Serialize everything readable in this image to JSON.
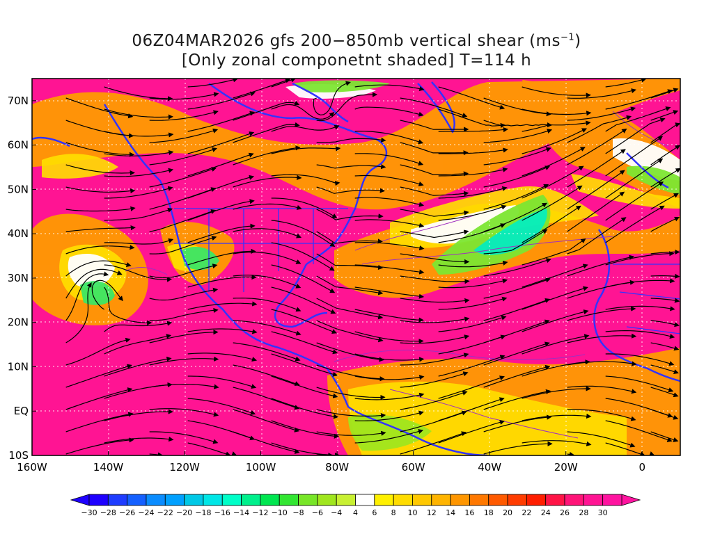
{
  "title": {
    "line1": "06Z04MAR2026 gfs 200−850mb vertical shear (ms",
    "line1_sup": "−1",
    "line1_end": ")",
    "line2": "[Only zonal componetnt shaded] T=114 h"
  },
  "map": {
    "lon_range": [
      -160,
      10
    ],
    "lat_range": [
      -10,
      75
    ],
    "lon_ticks": [
      {
        "value": -160,
        "label": "160W"
      },
      {
        "value": -140,
        "label": "140W"
      },
      {
        "value": -120,
        "label": "120W"
      },
      {
        "value": -100,
        "label": "100W"
      },
      {
        "value": -80,
        "label": "80W"
      },
      {
        "value": -60,
        "label": "60W"
      },
      {
        "value": -40,
        "label": "40W"
      },
      {
        "value": -20,
        "label": "20W"
      },
      {
        "value": 0,
        "label": "0"
      }
    ],
    "lat_ticks": [
      {
        "value": 70,
        "label": "70N"
      },
      {
        "value": 60,
        "label": "60N"
      },
      {
        "value": 50,
        "label": "50N"
      },
      {
        "value": 40,
        "label": "40N"
      },
      {
        "value": 30,
        "label": "30N"
      },
      {
        "value": 20,
        "label": "20N"
      },
      {
        "value": 10,
        "label": "10N"
      },
      {
        "value": 0,
        "label": "EQ"
      },
      {
        "value": -10,
        "label": "10S"
      }
    ],
    "background_color": "#ff1493",
    "coastline_color": "#3333ff",
    "streamline_color": "#000000"
  },
  "colorbar": {
    "labels": [
      "−30",
      "−28",
      "−26",
      "−24",
      "−22",
      "−20",
      "−18",
      "−16",
      "−14",
      "−12",
      "−10",
      "−8",
      "−6",
      "−4",
      "4",
      "6",
      "8",
      "10",
      "12",
      "14",
      "16",
      "18",
      "20",
      "22",
      "24",
      "26",
      "28",
      "30"
    ],
    "colors": [
      "#1e00ff",
      "#1e3cff",
      "#1460ff",
      "#0a8cff",
      "#00a0ff",
      "#00c8e6",
      "#00e6e6",
      "#00ffc8",
      "#00f08c",
      "#00e650",
      "#32e632",
      "#78e628",
      "#a0e61e",
      "#c8f032",
      "#ffffff",
      "#fff000",
      "#ffdc00",
      "#ffc800",
      "#ffb400",
      "#ff9600",
      "#ff7800",
      "#ff5a00",
      "#ff3c00",
      "#ff1e00",
      "#ff1446",
      "#ff1478",
      "#ff1493",
      "#ff14a0"
    ]
  },
  "shading_regions": [
    {
      "name": "north-pacific-orange",
      "color": "#ff9a00"
    },
    {
      "name": "subtropical-yellow",
      "color": "#ffe000"
    },
    {
      "name": "atlantic-green",
      "color": "#7de632"
    },
    {
      "name": "atlantic-cyan",
      "color": "#00f0c0"
    },
    {
      "name": "pacific-green",
      "color": "#3ce664"
    }
  ]
}
